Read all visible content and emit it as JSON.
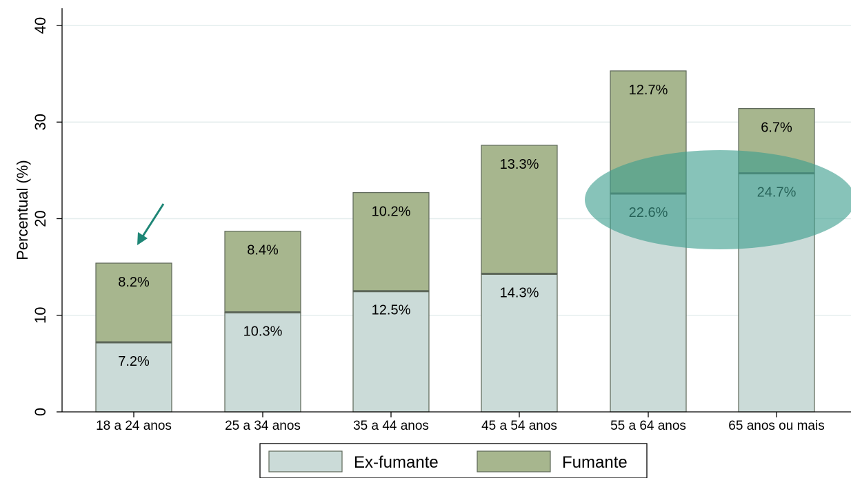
{
  "chart_data": {
    "type": "bar",
    "stacked": true,
    "title": "",
    "xlabel": "",
    "ylabel": "Percentual (%)",
    "ylim": [
      0,
      40
    ],
    "yticks": [
      0,
      10,
      20,
      30,
      40
    ],
    "grid": true,
    "legend_position": "bottom",
    "categories": [
      "18 a 24 anos",
      "25 a 34 anos",
      "35 a 44 anos",
      "45 a 54 anos",
      "55 a 64 anos",
      "65 anos ou mais"
    ],
    "series": [
      {
        "name": "Ex-fumante",
        "values": [
          7.2,
          10.3,
          12.5,
          14.3,
          22.6,
          24.7
        ],
        "labels": [
          "7.2%",
          "10.3%",
          "12.5%",
          "14.3%",
          "22.6%",
          "24.7%"
        ]
      },
      {
        "name": "Fumante",
        "values": [
          8.2,
          8.4,
          10.2,
          13.3,
          12.7,
          6.7
        ],
        "labels": [
          "8.2%",
          "8.4%",
          "10.2%",
          "13.3%",
          "12.7%",
          "6.7%"
        ]
      }
    ],
    "annotations": {
      "arrow_target_category": "18 a 24 anos",
      "highlight_categories": [
        "55 a 64 anos",
        "65 anos ou mais"
      ]
    },
    "colors": {
      "ex_fumante": "#cbdbd8",
      "fumante": "#a7b68e",
      "bar_edge": "#5c6658",
      "grid": "#e4eded",
      "annotation": "#1e8676",
      "highlight_fill": "#3d9e8e"
    }
  }
}
